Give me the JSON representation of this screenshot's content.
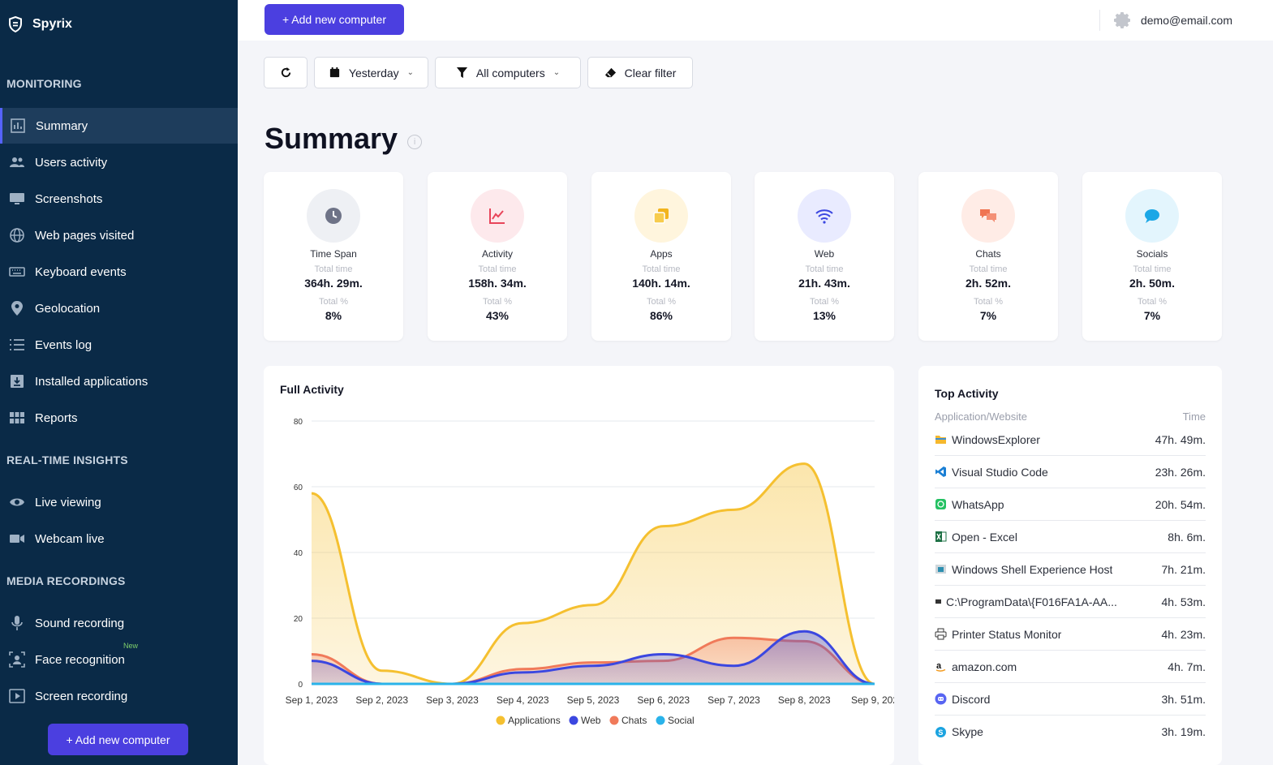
{
  "app": {
    "brand": "Spyrix",
    "user_email": "demo@email.com"
  },
  "sidebar": {
    "sections": {
      "monitoring": "MONITORING",
      "realtime": "REAL-TIME INSIGHTS",
      "media": "MEDIA RECORDINGS"
    },
    "items": [
      {
        "label": "Summary",
        "icon": "bar-chart-icon"
      },
      {
        "label": "Users activity",
        "icon": "users-icon"
      },
      {
        "label": "Screenshots",
        "icon": "monitor-icon"
      },
      {
        "label": "Web pages visited",
        "icon": "globe-icon"
      },
      {
        "label": "Keyboard events",
        "icon": "keyboard-icon"
      },
      {
        "label": "Geolocation",
        "icon": "map-pin-icon"
      },
      {
        "label": "Events log",
        "icon": "list-icon"
      },
      {
        "label": "Installed applications",
        "icon": "download-box-icon"
      },
      {
        "label": "Reports",
        "icon": "grid-icon"
      },
      {
        "label": "Live viewing",
        "icon": "eye-icon"
      },
      {
        "label": "Webcam live",
        "icon": "video-camera-icon"
      },
      {
        "label": "Sound recording",
        "icon": "microphone-icon"
      },
      {
        "label": "Face recognition",
        "icon": "face-scan-icon",
        "badge": "New"
      },
      {
        "label": "Screen recording",
        "icon": "play-screen-icon"
      }
    ],
    "add_button": "+ Add new computer"
  },
  "topbar": {
    "add_button": "+ Add new computer"
  },
  "filters": {
    "date": "Yesterday",
    "computers": "All computers",
    "clear": "Clear filter"
  },
  "page": {
    "title": "Summary"
  },
  "cards": [
    {
      "title": "Time Span",
      "total_time_label": "Total time",
      "total_time": "364h. 29m.",
      "percent_label": "Total %",
      "percent": "8%",
      "icon": "clock-icon",
      "color": "#6e7387",
      "bg": "#eef0f4"
    },
    {
      "title": "Activity",
      "total_time_label": "Total time",
      "total_time": "158h. 34m.",
      "percent_label": "Total %",
      "percent": "43%",
      "icon": "line-chart-icon",
      "color": "#e8455a",
      "bg": "#fde9ec"
    },
    {
      "title": "Apps",
      "total_time_label": "Total time",
      "total_time": "140h. 14m.",
      "percent_label": "Total %",
      "percent": "86%",
      "icon": "apps-icon",
      "color": "#f2b41d",
      "bg": "#fff5dd"
    },
    {
      "title": "Web",
      "total_time_label": "Total time",
      "total_time": "21h. 43m.",
      "percent_label": "Total %",
      "percent": "13%",
      "icon": "wifi-icon",
      "color": "#3b47e0",
      "bg": "#e9ebff"
    },
    {
      "title": "Chats",
      "total_time_label": "Total time",
      "total_time": "2h. 52m.",
      "percent_label": "Total %",
      "percent": "7%",
      "icon": "chat-bubbles-icon",
      "color": "#f07452",
      "bg": "#ffece6"
    },
    {
      "title": "Socials",
      "total_time_label": "Total time",
      "total_time": "2h. 50m.",
      "percent_label": "Total %",
      "percent": "7%",
      "icon": "speech-bubble-icon",
      "color": "#1ba7e6",
      "bg": "#e3f5fd"
    }
  ],
  "chart_data": {
    "type": "area",
    "title": "Full Activity",
    "categories": [
      "Sep 1, 2023",
      "Sep 2, 2023",
      "Sep 3, 2023",
      "Sep 4, 2023",
      "Sep 5, 2023",
      "Sep 6, 2023",
      "Sep 7, 2023",
      "Sep 8, 2023",
      "Sep 9, 202"
    ],
    "ylim": [
      0,
      80
    ],
    "yticks": [
      0,
      20,
      40,
      60,
      80
    ],
    "grid": true,
    "legend": "bottom",
    "series": [
      {
        "name": "Applications",
        "color": "#f5c030",
        "values": [
          58,
          4,
          0,
          18.5,
          24,
          48,
          53,
          67,
          0
        ]
      },
      {
        "name": "Web",
        "color": "#3b47e0",
        "values": [
          7,
          0,
          0,
          3.5,
          5.5,
          9,
          5.5,
          16,
          0
        ]
      },
      {
        "name": "Chats",
        "color": "#f07a5a",
        "values": [
          9,
          0,
          0,
          4.5,
          6.5,
          7,
          14,
          13,
          0
        ]
      },
      {
        "name": "Social",
        "color": "#2ab3ea",
        "values": [
          0,
          0,
          0,
          0,
          0,
          0,
          0,
          0,
          0
        ]
      }
    ]
  },
  "top_activity": {
    "title": "Top Activity",
    "col_app": "Application/Website",
    "col_time": "Time",
    "rows": [
      {
        "name": "WindowsExplorer",
        "time": "47h. 49m.",
        "icon": "folder-icon",
        "color": "#f5b82e"
      },
      {
        "name": "Visual Studio Code",
        "time": "23h. 26m.",
        "icon": "vscode-icon",
        "color": "#1a7fd4"
      },
      {
        "name": "WhatsApp",
        "time": "20h. 54m.",
        "icon": "whatsapp-icon",
        "color": "#25c163"
      },
      {
        "name": "Open - Excel",
        "time": "8h. 6m.",
        "icon": "excel-icon",
        "color": "#1d7044"
      },
      {
        "name": "Windows Shell Experience Host",
        "time": "7h. 21m.",
        "icon": "window-icon",
        "color": "#2c8fb0"
      },
      {
        "name": "C:\\ProgramData\\{F016FA1A-AA...",
        "time": "4h. 53m.",
        "icon": "app-small-icon",
        "color": "#333"
      },
      {
        "name": "Printer Status Monitor",
        "time": "4h. 23m.",
        "icon": "printer-icon",
        "color": "#333"
      },
      {
        "name": "amazon.com",
        "time": "4h. 7m.",
        "icon": "amazon-icon",
        "color": "#111"
      },
      {
        "name": "Discord",
        "time": "3h. 51m.",
        "icon": "discord-icon",
        "color": "#5865f2"
      },
      {
        "name": "Skype",
        "time": "3h. 19m.",
        "icon": "skype-icon",
        "color": "#1ba3e0"
      }
    ]
  }
}
